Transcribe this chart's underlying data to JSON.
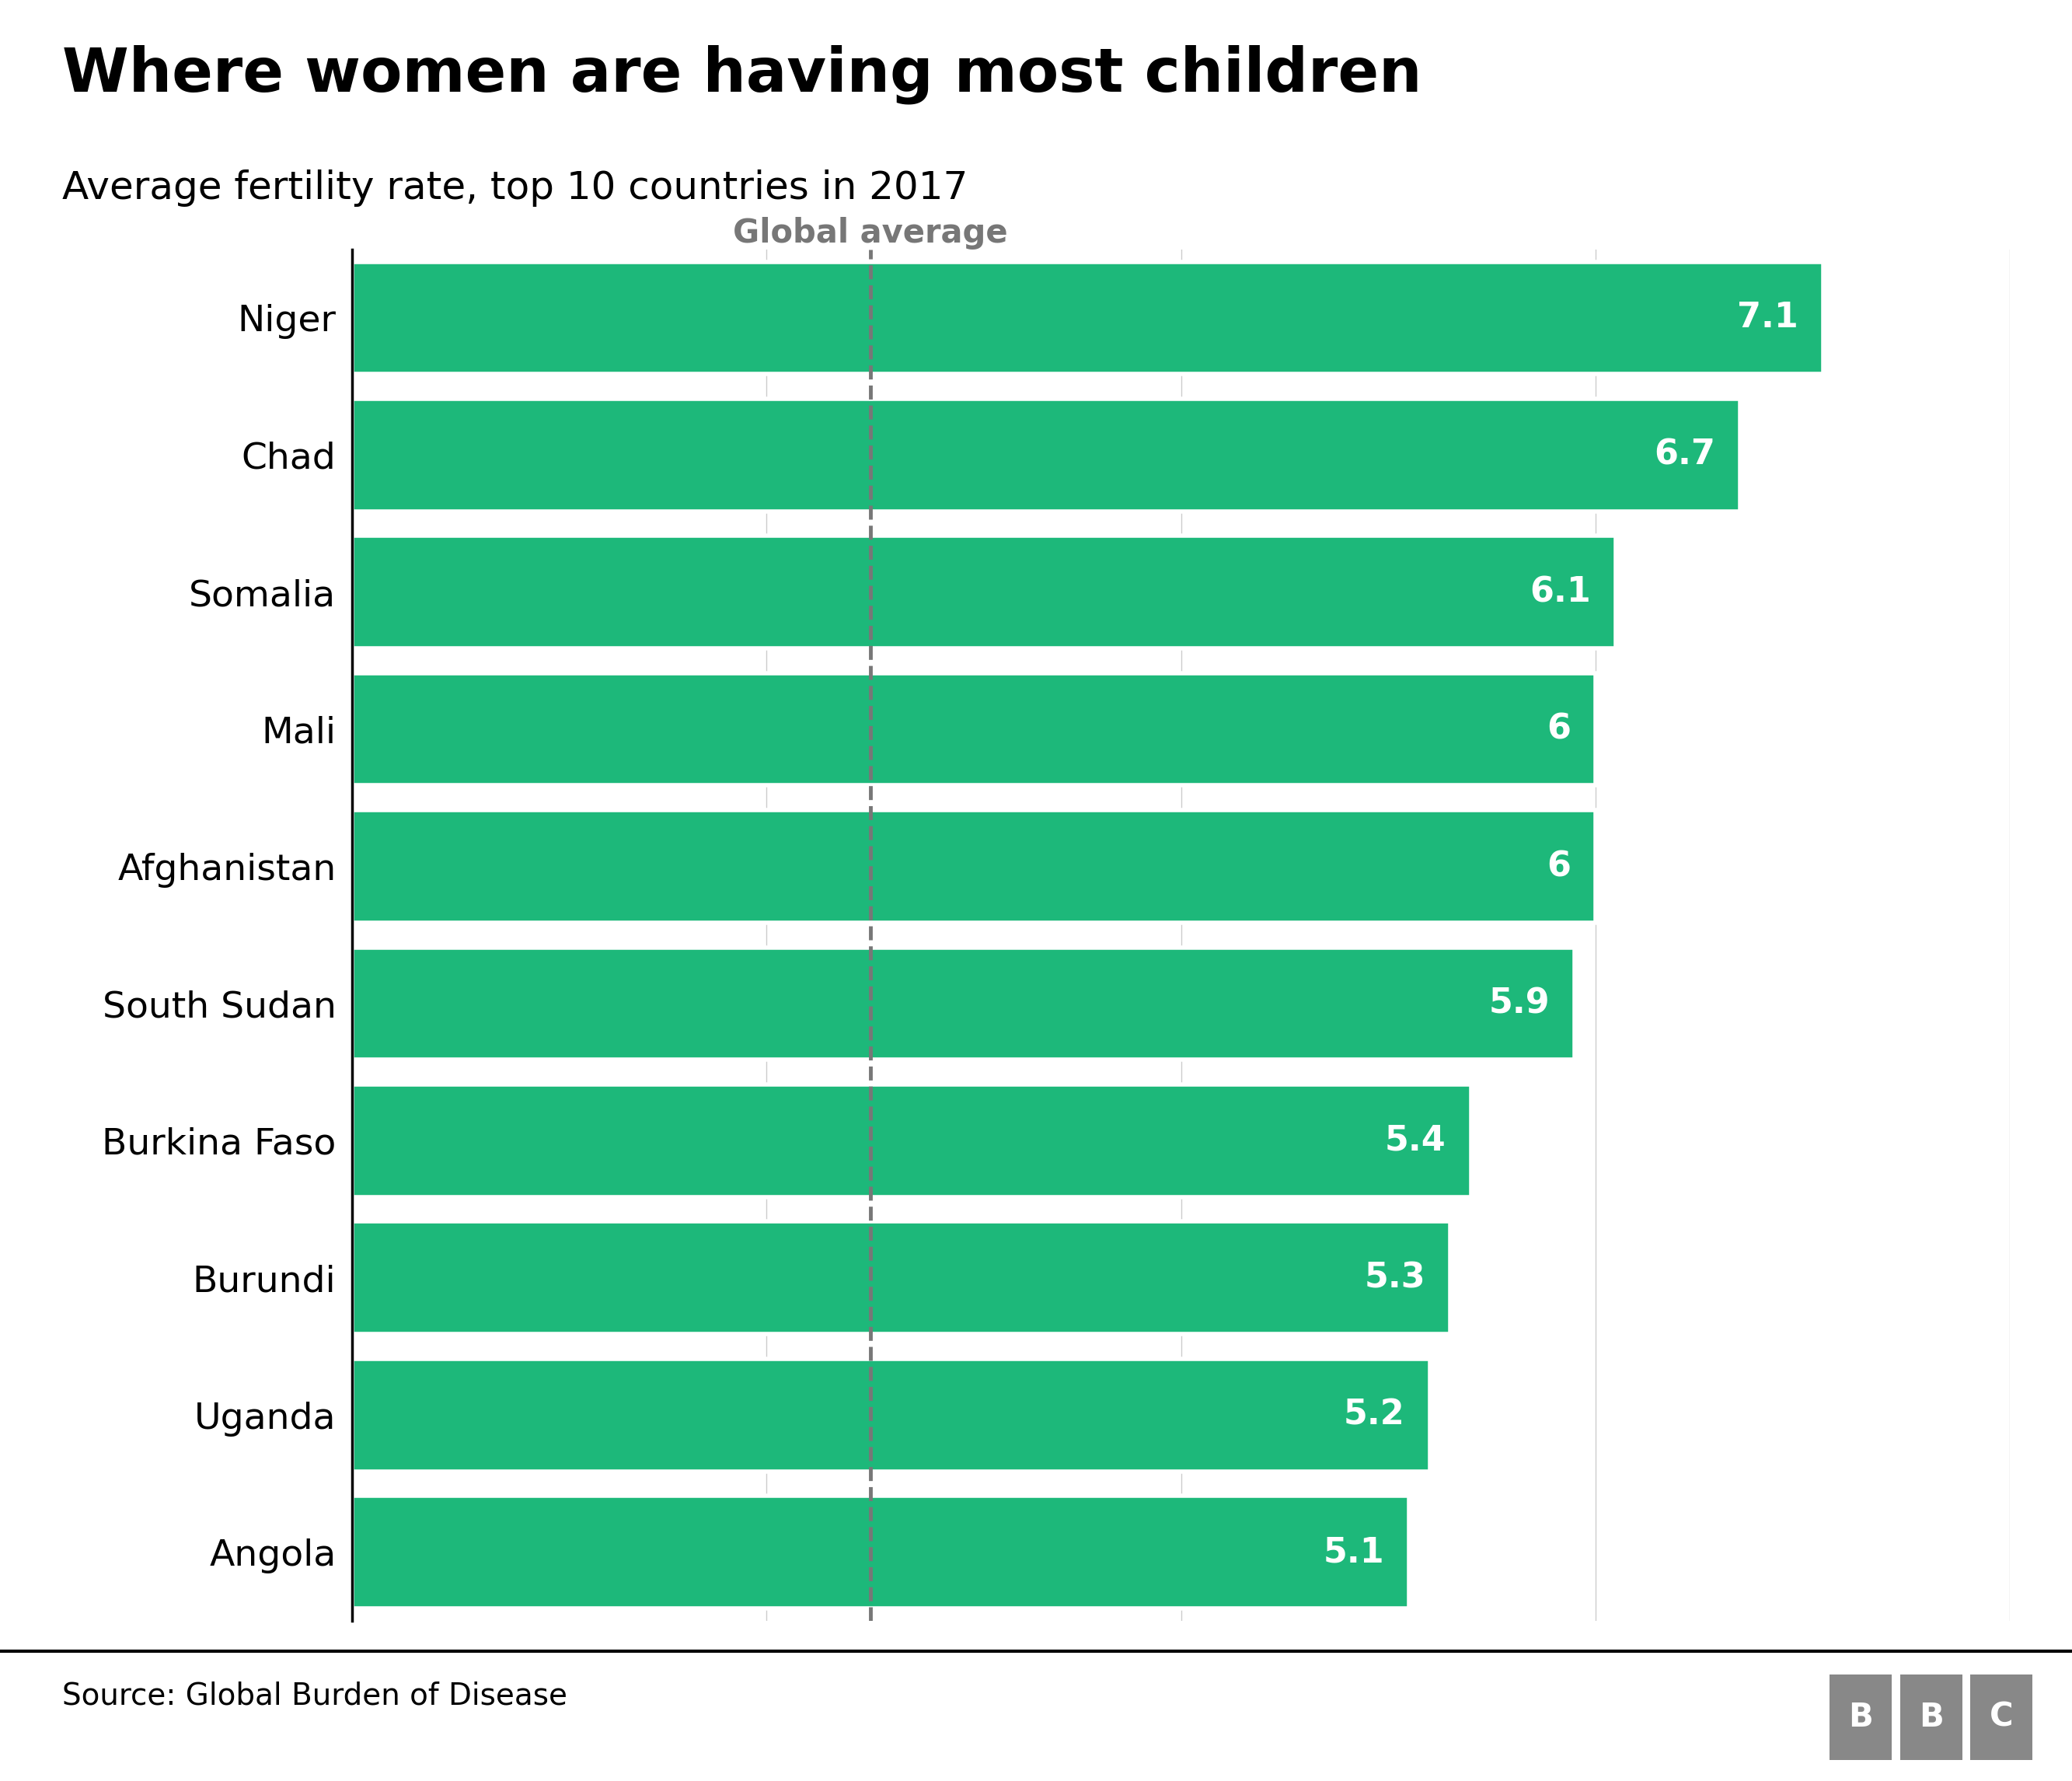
{
  "title": "Where women are having most children",
  "subtitle": "Average fertility rate, top 10 countries in 2017",
  "source": "Source: Global Burden of Disease",
  "categories": [
    "Niger",
    "Chad",
    "Somalia",
    "Mali",
    "Afghanistan",
    "South Sudan",
    "Burkina Faso",
    "Burundi",
    "Uganda",
    "Angola"
  ],
  "values": [
    7.1,
    6.7,
    6.1,
    6.0,
    6.0,
    5.9,
    5.4,
    5.3,
    5.2,
    5.1
  ],
  "bar_color": "#1DB87A",
  "label_color": "#ffffff",
  "global_average": 2.5,
  "global_avg_label": "Global average",
  "global_avg_color": "#777777",
  "xlim": [
    0,
    8
  ],
  "background_color": "#ffffff",
  "title_fontsize": 56,
  "subtitle_fontsize": 36,
  "bar_label_fontsize": 32,
  "ytick_fontsize": 34,
  "source_fontsize": 28,
  "global_avg_fontsize": 30
}
